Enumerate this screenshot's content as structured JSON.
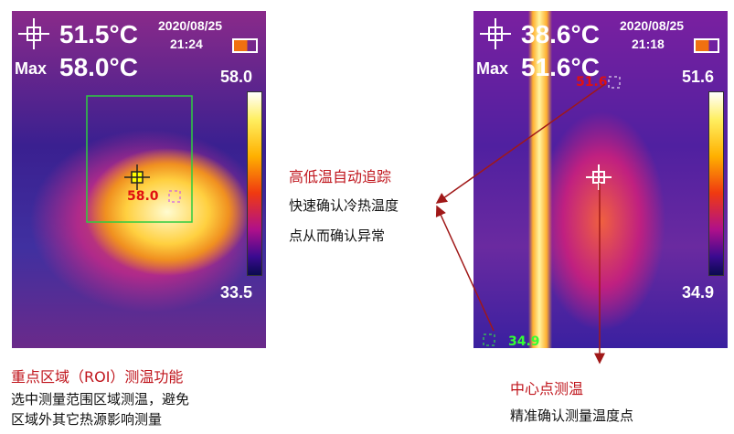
{
  "left_screen": {
    "center_temp": "51.5°C",
    "date": "2020/08/25",
    "time": "21:24",
    "max_label": "Max",
    "max_temp": "58.0°C",
    "scale_max": "58.0",
    "scale_min": "33.5",
    "roi_marker": "58.0"
  },
  "right_screen": {
    "center_temp": "38.6°C",
    "date": "2020/08/25",
    "time": "21:18",
    "max_label": "Max",
    "max_temp": "51.6°C",
    "scale_max": "51.6",
    "scale_min": "34.9",
    "hot_marker": "51.6",
    "cold_marker": "34.9"
  },
  "annotations": {
    "tracking": {
      "title": "高低温自动追踪",
      "lines": [
        "快速确认冷热温度",
        "点从而确认异常"
      ]
    },
    "roi": {
      "title": "重点区域（ROI）测温功能",
      "lines": [
        "选中测量范围区域测温，避免",
        "区域外其它热源影响测量"
      ]
    },
    "center": {
      "title": "中心点测温",
      "lines": [
        "精准确认测量温度点"
      ]
    }
  }
}
